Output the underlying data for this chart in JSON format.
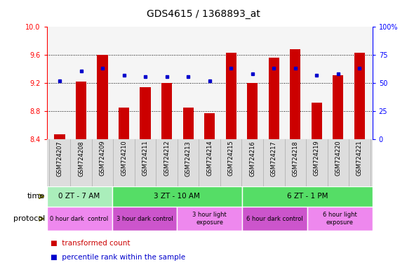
{
  "title": "GDS4615 / 1368893_at",
  "samples": [
    "GSM724207",
    "GSM724208",
    "GSM724209",
    "GSM724210",
    "GSM724211",
    "GSM724212",
    "GSM724213",
    "GSM724214",
    "GSM724215",
    "GSM724216",
    "GSM724217",
    "GSM724218",
    "GSM724219",
    "GSM724220",
    "GSM724221"
  ],
  "red_values": [
    8.47,
    9.22,
    9.6,
    8.85,
    9.14,
    9.2,
    8.85,
    8.77,
    9.63,
    9.2,
    9.56,
    9.68,
    8.92,
    9.31,
    9.63
  ],
  "blue_values": [
    52,
    61,
    63,
    57,
    56,
    56,
    56,
    52,
    63,
    58,
    63,
    63,
    57,
    58,
    63
  ],
  "ylim_left": [
    8.4,
    10.0
  ],
  "ylim_right": [
    0,
    100
  ],
  "yticks_left": [
    8.4,
    8.8,
    9.2,
    9.6,
    10.0
  ],
  "yticks_right": [
    0,
    25,
    50,
    75,
    100
  ],
  "bar_color": "#cc0000",
  "dot_color": "#0000cc",
  "time_groups": [
    {
      "label": "0 ZT - 7 AM",
      "start": 0,
      "end": 3,
      "color": "#aaeebb"
    },
    {
      "label": "3 ZT - 10 AM",
      "start": 3,
      "end": 9,
      "color": "#55dd66"
    },
    {
      "label": "6 ZT - 1 PM",
      "start": 9,
      "end": 15,
      "color": "#55dd66"
    }
  ],
  "protocol_groups": [
    {
      "label": "0 hour dark  control",
      "start": 0,
      "end": 3,
      "color": "#ee88ee"
    },
    {
      "label": "3 hour dark control",
      "start": 3,
      "end": 6,
      "color": "#cc55cc"
    },
    {
      "label": "3 hour light\nexposure",
      "start": 6,
      "end": 9,
      "color": "#ee88ee"
    },
    {
      "label": "6 hour dark control",
      "start": 9,
      "end": 12,
      "color": "#cc55cc"
    },
    {
      "label": "6 hour light\nexposure",
      "start": 12,
      "end": 15,
      "color": "#ee88ee"
    }
  ]
}
